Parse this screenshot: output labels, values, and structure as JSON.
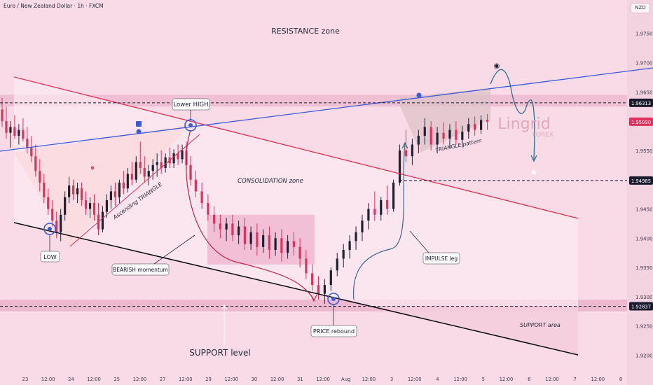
{
  "header": {
    "title": "Euro / New Zealand Dollar · 1h · FXCM",
    "currency": "NZD"
  },
  "colors": {
    "background": "#f9dbe7",
    "up_candle": "#1e2230",
    "down_candle": "#e0305c",
    "channel": "#0b0b12",
    "trendline": "#3b5bd6",
    "red_line": "#e0305c",
    "price_tag": "#1a1a2e",
    "current_price": "#e0305c"
  },
  "annotations": {
    "resistance_zone": "RESISTANCE zone",
    "lower_high": "Lower HIGH",
    "low": "LOW",
    "ascending_triangle": "Ascending TRIANGLE",
    "consolidation_zone": "CONSOLIDATION zone",
    "bearish_momentum": "BEARISH momentum",
    "price_rebound": "PRICE rebound",
    "impulse_leg": "IMPULSE leg",
    "triangle_pattern": "TRIANGLE pattern",
    "support_area": "SUPPORT area",
    "support_level": "SUPPORT level"
  },
  "watermark": {
    "line1": "Lingrid",
    "line2": "FOREX"
  },
  "chart_data": {
    "type": "candlestick",
    "symbol": "EURNZD",
    "timeframe": "1h",
    "y_axis": {
      "range": [
        1.9185,
        1.9807
      ],
      "ticks": [
        1.92,
        1.925,
        1.93,
        1.935,
        1.94,
        1.945,
        1.95,
        1.955,
        1.96,
        1.965,
        1.97,
        1.975
      ]
    },
    "x_axis": {
      "ticks": [
        "23",
        "12:00",
        "24",
        "12:00",
        "25",
        "12:00",
        "27",
        "12:00",
        "29",
        "12:00",
        "30",
        "12:00",
        "31",
        "12:00",
        "Aug",
        "12:00",
        "3",
        "12:00",
        "4",
        "12:00",
        "5",
        "12:00",
        "6",
        "12:00",
        "7",
        "12:00",
        "8"
      ]
    },
    "price_tags": [
      {
        "value": 1.96313,
        "label": "1.96313",
        "role": "resistance"
      },
      {
        "value": 1.9599,
        "label": "1.95990",
        "role": "current"
      },
      {
        "value": 1.94985,
        "label": "1.94985",
        "role": "target"
      },
      {
        "value": 1.92837,
        "label": "1.92837",
        "role": "support"
      }
    ],
    "levels": {
      "resistance_zone": [
        1.9625,
        1.9645
      ],
      "support_zone": [
        1.9275,
        1.9295
      ]
    },
    "consolidation_box": {
      "x": [
        "29",
        "31"
      ],
      "y": [
        1.9355,
        1.944
      ]
    },
    "candles": [
      [
        1.962,
        1.964,
        1.959,
        1.96
      ],
      [
        1.96,
        1.9625,
        1.957,
        1.958
      ],
      [
        1.958,
        1.96,
        1.9555,
        1.959
      ],
      [
        1.959,
        1.961,
        1.957,
        1.9575
      ],
      [
        1.9575,
        1.9595,
        1.956,
        1.9585
      ],
      [
        1.9585,
        1.9605,
        1.9565,
        1.957
      ],
      [
        1.957,
        1.959,
        1.9545,
        1.9555
      ],
      [
        1.9555,
        1.9575,
        1.953,
        1.954
      ],
      [
        1.954,
        1.956,
        1.9505,
        1.9515
      ],
      [
        1.9515,
        1.9535,
        1.948,
        1.9495
      ],
      [
        1.9495,
        1.951,
        1.946,
        1.947
      ],
      [
        1.947,
        1.9485,
        1.944,
        1.945
      ],
      [
        1.945,
        1.9465,
        1.942,
        1.943
      ],
      [
        1.943,
        1.9445,
        1.94,
        1.941
      ],
      [
        1.941,
        1.945,
        1.9395,
        1.944
      ],
      [
        1.944,
        1.948,
        1.943,
        1.947
      ],
      [
        1.947,
        1.9505,
        1.946,
        1.949
      ],
      [
        1.949,
        1.95,
        1.9465,
        1.9475
      ],
      [
        1.9475,
        1.9495,
        1.946,
        1.9485
      ],
      [
        1.9485,
        1.9495,
        1.9455,
        1.9465
      ],
      [
        1.9465,
        1.948,
        1.944,
        1.945
      ],
      [
        1.945,
        1.947,
        1.9435,
        1.946
      ],
      [
        1.946,
        1.9475,
        1.943,
        1.944
      ],
      [
        1.944,
        1.946,
        1.9405,
        1.9415
      ],
      [
        1.9415,
        1.9455,
        1.941,
        1.9445
      ],
      [
        1.9445,
        1.9475,
        1.9435,
        1.9465
      ],
      [
        1.9465,
        1.949,
        1.945,
        1.948
      ],
      [
        1.948,
        1.9495,
        1.9455,
        1.947
      ],
      [
        1.947,
        1.95,
        1.946,
        1.9495
      ],
      [
        1.9495,
        1.9515,
        1.9475,
        1.9485
      ],
      [
        1.9485,
        1.952,
        1.9478,
        1.951
      ],
      [
        1.951,
        1.953,
        1.949,
        1.95
      ],
      [
        1.95,
        1.954,
        1.9495,
        1.953
      ],
      [
        1.953,
        1.9565,
        1.951,
        1.952
      ],
      [
        1.952,
        1.954,
        1.9495,
        1.9505
      ],
      [
        1.9505,
        1.9525,
        1.949,
        1.9515
      ],
      [
        1.9515,
        1.9535,
        1.95,
        1.9525
      ],
      [
        1.9525,
        1.9545,
        1.9505,
        1.953
      ],
      [
        1.953,
        1.955,
        1.951,
        1.952
      ],
      [
        1.952,
        1.9545,
        1.9512,
        1.9538
      ],
      [
        1.9538,
        1.9555,
        1.952,
        1.9528
      ],
      [
        1.9528,
        1.9552,
        1.952,
        1.9545
      ],
      [
        1.9545,
        1.956,
        1.9525,
        1.9535
      ],
      [
        1.9535,
        1.956,
        1.9528,
        1.955
      ],
      [
        1.955,
        1.9565,
        1.9515,
        1.9525
      ],
      [
        1.9525,
        1.954,
        1.949,
        1.95
      ],
      [
        1.95,
        1.9515,
        1.947,
        1.948
      ],
      [
        1.948,
        1.9495,
        1.945,
        1.946
      ],
      [
        1.946,
        1.9475,
        1.943,
        1.944
      ],
      [
        1.944,
        1.9455,
        1.941,
        1.9425
      ],
      [
        1.9425,
        1.944,
        1.94,
        1.9415
      ],
      [
        1.9415,
        1.9435,
        1.9395,
        1.9425
      ],
      [
        1.9425,
        1.944,
        1.9395,
        1.9405
      ],
      [
        1.9405,
        1.943,
        1.939,
        1.942
      ],
      [
        1.942,
        1.9435,
        1.938,
        1.939
      ],
      [
        1.939,
        1.942,
        1.938,
        1.941
      ],
      [
        1.941,
        1.9425,
        1.937,
        1.9385
      ],
      [
        1.9385,
        1.9415,
        1.9375,
        1.9405
      ],
      [
        1.9405,
        1.942,
        1.9365,
        1.938
      ],
      [
        1.938,
        1.941,
        1.937,
        1.94
      ],
      [
        1.94,
        1.9415,
        1.936,
        1.9375
      ],
      [
        1.9375,
        1.9405,
        1.9365,
        1.9395
      ],
      [
        1.9395,
        1.941,
        1.937,
        1.9385
      ],
      [
        1.9385,
        1.94,
        1.935,
        1.9365
      ],
      [
        1.9365,
        1.938,
        1.933,
        1.934
      ],
      [
        1.934,
        1.9355,
        1.931,
        1.932
      ],
      [
        1.932,
        1.9335,
        1.9295,
        1.9305
      ],
      [
        1.9305,
        1.933,
        1.9288,
        1.932
      ],
      [
        1.932,
        1.935,
        1.931,
        1.9345
      ],
      [
        1.9345,
        1.9375,
        1.9335,
        1.9365
      ],
      [
        1.9365,
        1.939,
        1.935,
        1.938
      ],
      [
        1.938,
        1.9405,
        1.9365,
        1.9395
      ],
      [
        1.9395,
        1.942,
        1.938,
        1.941
      ],
      [
        1.941,
        1.944,
        1.9395,
        1.943
      ],
      [
        1.943,
        1.946,
        1.9415,
        1.945
      ],
      [
        1.945,
        1.948,
        1.943,
        1.944
      ],
      [
        1.944,
        1.947,
        1.943,
        1.9465
      ],
      [
        1.9465,
        1.949,
        1.944,
        1.945
      ],
      [
        1.945,
        1.95,
        1.9445,
        1.9495
      ],
      [
        1.9495,
        1.956,
        1.949,
        1.955
      ],
      [
        1.955,
        1.9585,
        1.953,
        1.954
      ],
      [
        1.954,
        1.957,
        1.9525,
        1.956
      ],
      [
        1.956,
        1.9585,
        1.9545,
        1.9575
      ],
      [
        1.9575,
        1.9605,
        1.956,
        1.959
      ],
      [
        1.959,
        1.96,
        1.955,
        1.956
      ],
      [
        1.956,
        1.959,
        1.9545,
        1.958
      ],
      [
        1.958,
        1.9598,
        1.956,
        1.957
      ],
      [
        1.957,
        1.9595,
        1.9555,
        1.9585
      ],
      [
        1.9585,
        1.96,
        1.956,
        1.9568
      ],
      [
        1.9568,
        1.9592,
        1.9555,
        1.9582
      ],
      [
        1.9582,
        1.9605,
        1.957,
        1.9595
      ],
      [
        1.9595,
        1.9608,
        1.9575,
        1.9585
      ],
      [
        1.9585,
        1.961,
        1.9578,
        1.9602
      ],
      [
        1.9602,
        1.9612,
        1.9585,
        1.9599
      ]
    ]
  }
}
